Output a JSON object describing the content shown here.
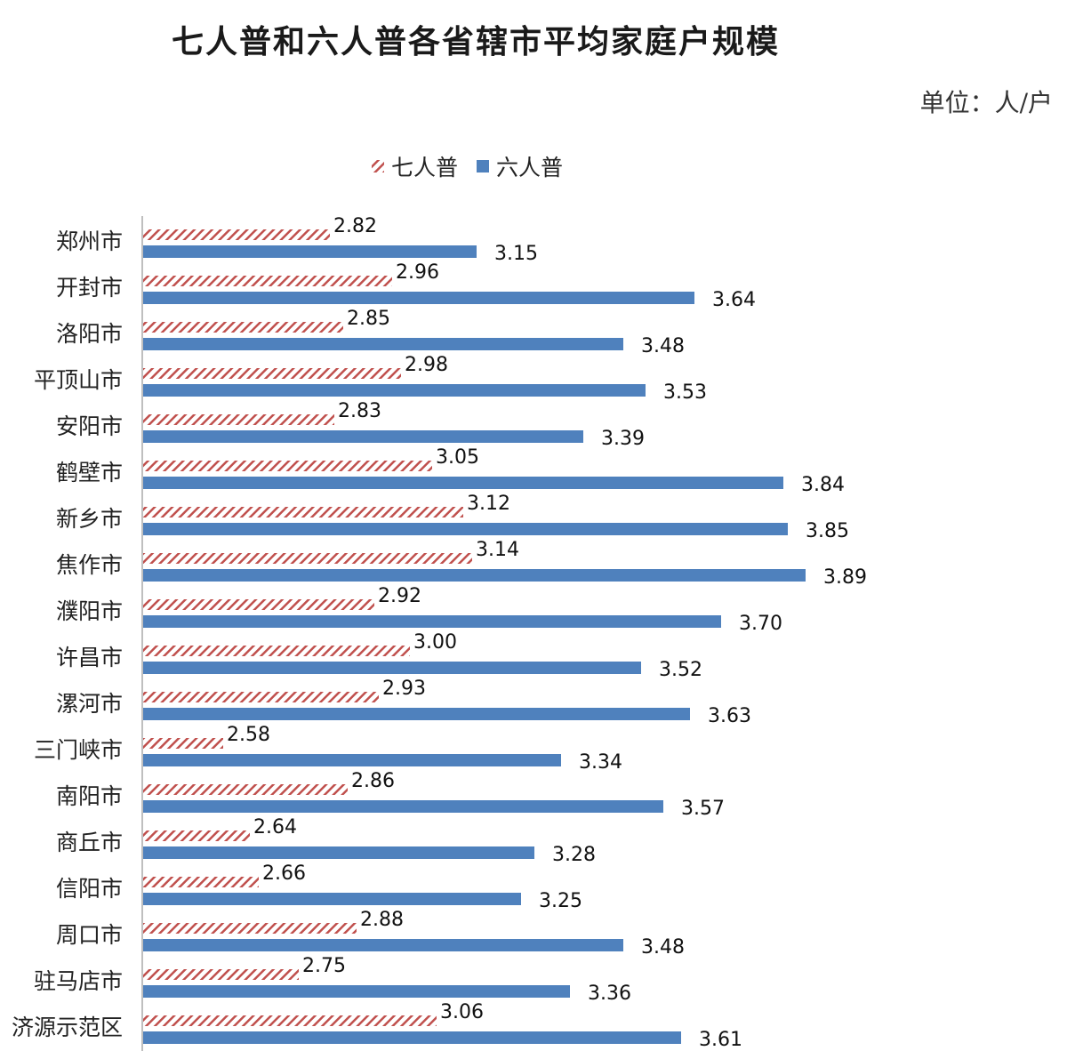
{
  "title": "七人普和六人普各省辖市平均家庭户规模",
  "unit": "单位：人/户",
  "colors": {
    "seventh": "#c0504d",
    "sixth": "#4f81bd"
  },
  "chart_data": {
    "type": "bar",
    "orientation": "horizontal",
    "title": "七人普和六人普各省辖市平均家庭户规模",
    "legend_position": "top",
    "grid": false,
    "xlim": [
      2.4,
      4.0
    ],
    "categories": [
      "郑州市",
      "开封市",
      "洛阳市",
      "平顶山市",
      "安阳市",
      "鹤壁市",
      "新乡市",
      "焦作市",
      "濮阳市",
      "许昌市",
      "漯河市",
      "三门峡市",
      "南阳市",
      "商丘市",
      "信阳市",
      "周口市",
      "驻马店市",
      "济源示范区"
    ],
    "series": [
      {
        "name": "七人普",
        "pattern": "hatched",
        "values": [
          2.82,
          2.96,
          2.85,
          2.98,
          2.83,
          3.05,
          3.12,
          3.14,
          2.92,
          3.0,
          2.93,
          2.58,
          2.86,
          2.64,
          2.66,
          2.88,
          2.75,
          3.06
        ],
        "labels": [
          "2.82",
          "2.96",
          "2.85",
          "2.98",
          "2.83",
          "3.05",
          "3.12",
          "3.14",
          "2.92",
          "3.00",
          "2.93",
          "2.58",
          "2.86",
          "2.64",
          "2.66",
          "2.88",
          "2.75",
          "3.06"
        ]
      },
      {
        "name": "六人普",
        "pattern": "solid",
        "values": [
          3.15,
          3.64,
          3.48,
          3.53,
          3.39,
          3.84,
          3.85,
          3.89,
          3.7,
          3.52,
          3.63,
          3.34,
          3.57,
          3.28,
          3.25,
          3.48,
          3.36,
          3.61
        ],
        "labels": [
          "3.15",
          "3.64",
          "3.48",
          "3.53",
          "3.39",
          "3.84",
          "3.85",
          "3.89",
          "3.70",
          "3.52",
          "3.63",
          "3.34",
          "3.57",
          "3.28",
          "3.25",
          "3.48",
          "3.36",
          "3.61"
        ]
      }
    ]
  }
}
